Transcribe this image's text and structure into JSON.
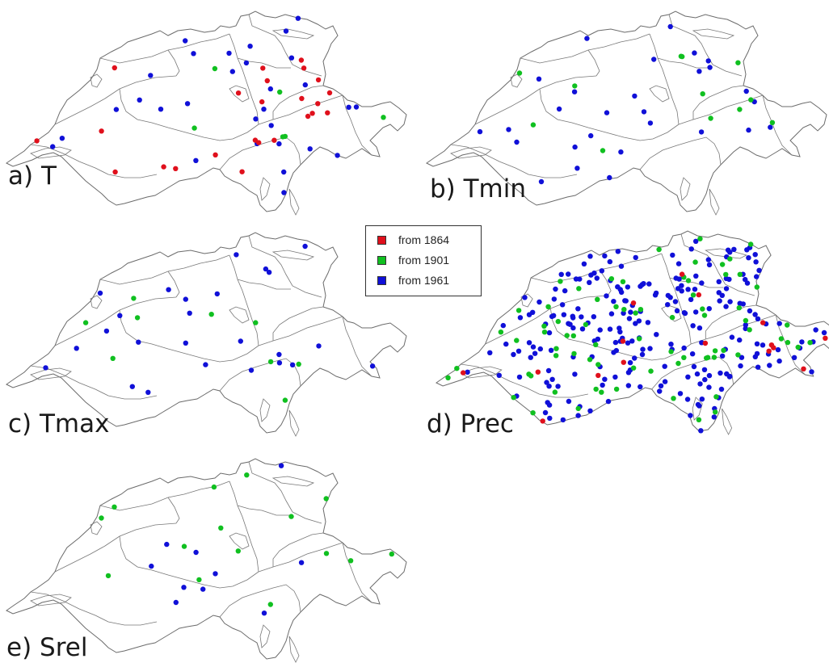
{
  "legend": {
    "entries": [
      {
        "label": "from 1864",
        "color": "#e0101c"
      },
      {
        "label": "from 1901",
        "color": "#10c020"
      },
      {
        "label": "from 1961",
        "color": "#1010d8"
      }
    ]
  },
  "panels": [
    {
      "id": "T",
      "label": "a) T",
      "stations": {
        "red": 24,
        "green": 6,
        "blue": 30
      }
    },
    {
      "id": "Tmin",
      "label": "b) Tmin",
      "stations": {
        "red": 0,
        "green": 12,
        "blue": 28
      }
    },
    {
      "id": "Tmax",
      "label": "c) Tmax",
      "stations": {
        "red": 0,
        "green": 9,
        "blue": 25
      }
    },
    {
      "id": "Prec",
      "label": "d) Prec",
      "stations": {
        "red": 16,
        "green": 75,
        "blue": 240
      }
    },
    {
      "id": "Srel",
      "label": "e) Srel",
      "stations": {
        "red": 0,
        "green": 15,
        "blue": 10
      }
    }
  ]
}
